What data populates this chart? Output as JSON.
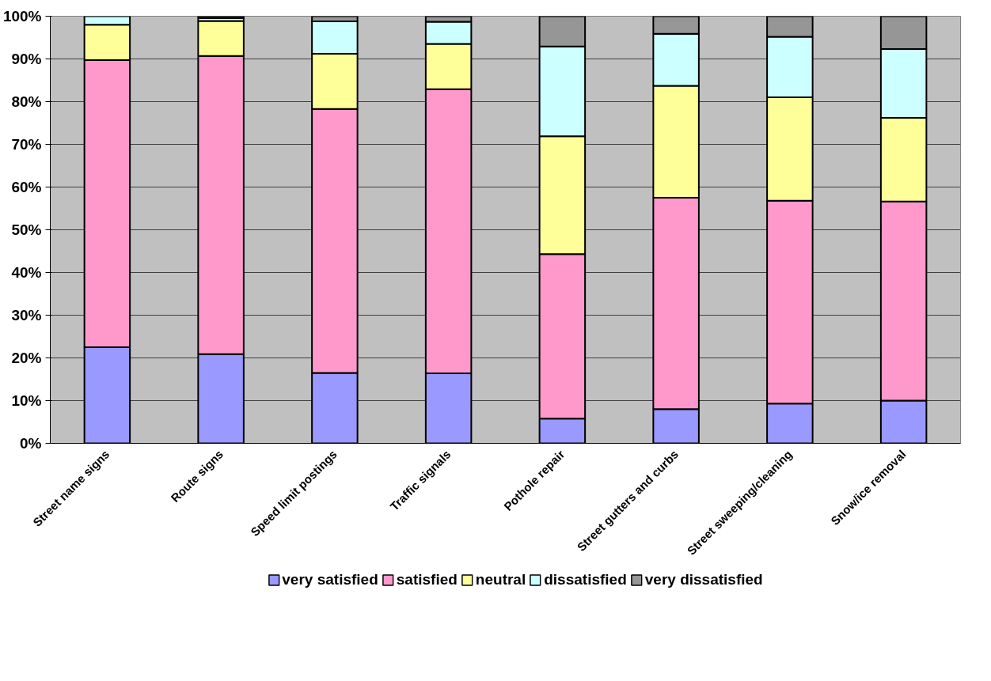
{
  "chart_data": {
    "type": "bar",
    "stacked": true,
    "categories": [
      "Street name signs",
      "Route signs",
      "Speed limit postings",
      "Traffic signals",
      "Pothole repair",
      "Street gutters and curbs",
      "Street sweeping/cleaning",
      "Snow/ice removal"
    ],
    "series": [
      {
        "name": "very satisfied",
        "color": "#9999ff",
        "values": [
          22.5,
          20.9,
          16.5,
          16.4,
          5.8,
          8.0,
          9.3,
          10.0
        ]
      },
      {
        "name": "satisfied",
        "color": "#ff99cc",
        "values": [
          67.2,
          69.8,
          61.8,
          66.5,
          38.5,
          49.5,
          47.5,
          46.6
        ]
      },
      {
        "name": "neutral",
        "color": "#ffff99",
        "values": [
          8.3,
          8.2,
          12.9,
          10.6,
          27.6,
          26.2,
          24.2,
          19.6
        ]
      },
      {
        "name": "dissatisfied",
        "color": "#ccffff",
        "values": [
          2.0,
          0.7,
          7.6,
          5.2,
          21.0,
          12.2,
          14.2,
          16.1
        ]
      },
      {
        "name": "very dissatisfied",
        "color": "#969696",
        "values": [
          null,
          0.4,
          1.2,
          1.3,
          7.1,
          4.1,
          4.8,
          7.7
        ]
      }
    ],
    "ylim": [
      0,
      100
    ],
    "yticks": [
      {
        "value": 0,
        "label": "0%"
      },
      {
        "value": 10,
        "label": "10%"
      },
      {
        "value": 20,
        "label": "20%"
      },
      {
        "value": 30,
        "label": "30%"
      },
      {
        "value": 40,
        "label": "40%"
      },
      {
        "value": 50,
        "label": "50%"
      },
      {
        "value": 60,
        "label": "60%"
      },
      {
        "value": 70,
        "label": "70%"
      },
      {
        "value": 80,
        "label": "80%"
      },
      {
        "value": 90,
        "label": "90%"
      },
      {
        "value": 100,
        "label": "100%"
      }
    ],
    "grid": "y",
    "legend": "bottom"
  }
}
